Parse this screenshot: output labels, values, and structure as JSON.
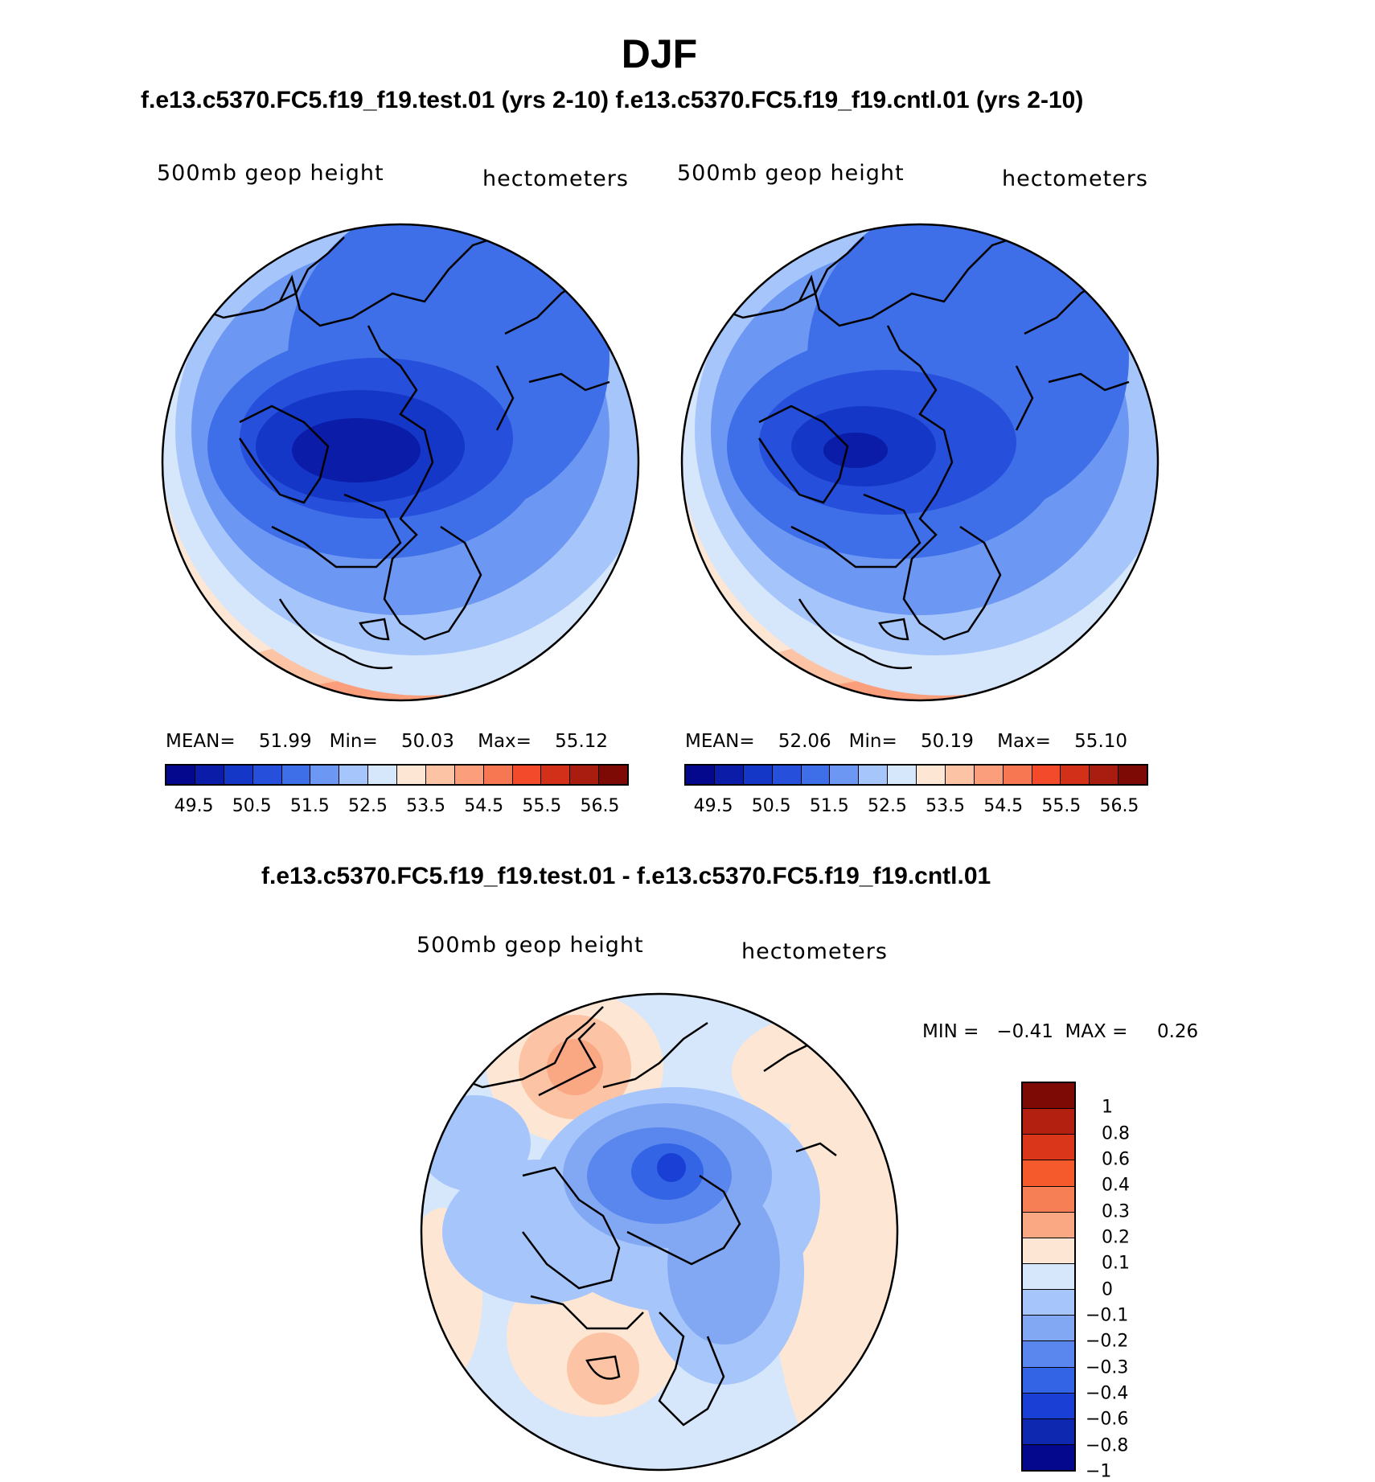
{
  "figure": {
    "title": "DJF",
    "header_line": "f.e13.c5370.FC5.f19_f19.test.01 (yrs 2-10) f.e13.c5370.FC5.f19_f19.cntl.01 (yrs 2-10)",
    "diff_title": "f.e13.c5370.FC5.f19_f19.test.01 - f.e13.c5370.FC5.f19_f19.cntl.01"
  },
  "panels": [
    {
      "variable": "500mb geop height",
      "units": "hectometers",
      "mean_label": "MEAN=",
      "mean": "51.99",
      "min_label": "Min=",
      "min": "50.03",
      "max_label": "Max=",
      "max": "55.12"
    },
    {
      "variable": "500mb geop height",
      "units": "hectometers",
      "mean_label": "MEAN=",
      "mean": "52.06",
      "min_label": "Min=",
      "min": "50.19",
      "max_label": "Max=",
      "max": "55.10"
    }
  ],
  "abs_colorbar": {
    "colors": [
      "#04088c",
      "#0b1ca8",
      "#1537c8",
      "#2650dc",
      "#3f6fe8",
      "#6c97f2",
      "#a6c5fb",
      "#d6e6fb",
      "#fde6d3",
      "#fcc4a4",
      "#fb9e7b",
      "#f77752",
      "#f34a2b",
      "#d3301a",
      "#a81d0f",
      "#7e0a06"
    ],
    "tick_labels": [
      "49.5",
      "50.5",
      "51.5",
      "52.5",
      "53.5",
      "54.5",
      "55.5",
      "56.5"
    ]
  },
  "diff_panel": {
    "variable": "500mb geop height",
    "units": "hectometers",
    "min_label": "MIN =",
    "min": "−0.41",
    "max_label": "MAX =",
    "max": "0.26"
  },
  "diff_colorbar": {
    "colors": [
      "#7e0a06",
      "#b3200f",
      "#d9361a",
      "#f55a2d",
      "#f77f55",
      "#faa784",
      "#fde6d3",
      "#d6e6fb",
      "#a6c5fb",
      "#82a8f4",
      "#5a87ee",
      "#3364e6",
      "#1a3fd4",
      "#0f28b0",
      "#04088c"
    ],
    "tick_labels": [
      "1",
      "0.8",
      "0.6",
      "0.4",
      "0.3",
      "0.2",
      "0.1",
      "0",
      "−0.1",
      "−0.2",
      "−0.3",
      "−0.4",
      "−0.6",
      "−0.8",
      "−1"
    ]
  }
}
